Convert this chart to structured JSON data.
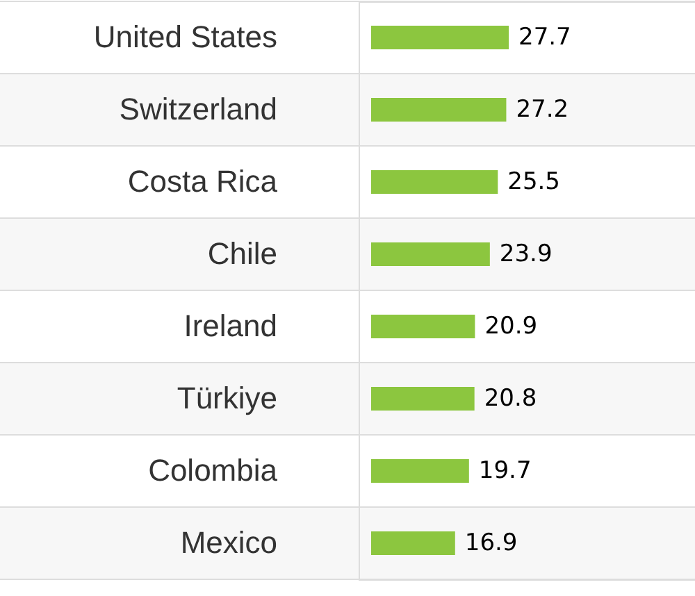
{
  "chart_data": {
    "type": "bar",
    "orientation": "horizontal",
    "categories": [
      "United States",
      "Switzerland",
      "Costa Rica",
      "Chile",
      "Ireland",
      "Türkiye",
      "Colombia",
      "Mexico"
    ],
    "values": [
      27.7,
      27.2,
      25.5,
      23.9,
      20.9,
      20.8,
      19.7,
      16.9
    ],
    "color": "#8cc63f",
    "data_labels": true,
    "grid": "y"
  }
}
